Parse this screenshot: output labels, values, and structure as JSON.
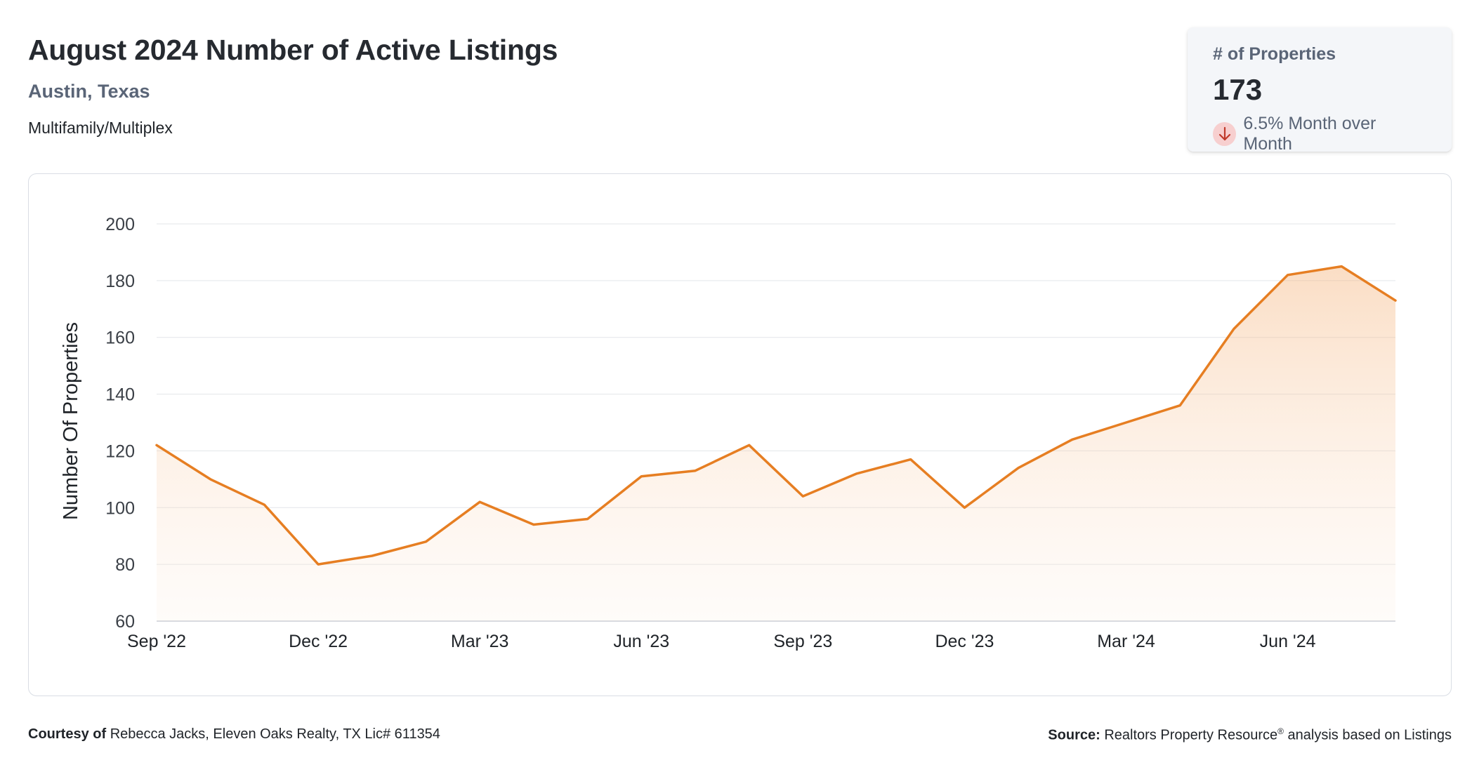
{
  "header": {
    "title": "August 2024 Number of Active Listings",
    "location": "Austin, Texas",
    "category": "Multifamily/Multiplex"
  },
  "stat_card": {
    "label": "# of Properties",
    "value": "173",
    "change_text": "6.5% Month over Month",
    "direction": "down",
    "direction_icon": "arrow-down-icon",
    "badge_color": "#f7cfcf",
    "arrow_color": "#c0392b"
  },
  "chart_data": {
    "type": "area",
    "title": "",
    "xlabel": "",
    "ylabel": "Number Of Properties",
    "ylim": [
      60,
      200
    ],
    "yticks": [
      60,
      80,
      100,
      120,
      140,
      160,
      180,
      200
    ],
    "grid": true,
    "line_color": "#e67e22",
    "x_tick_labels": [
      "Sep '22",
      "Dec '22",
      "Mar '23",
      "Jun '23",
      "Sep '23",
      "Dec '23",
      "Mar '24",
      "Jun '24"
    ],
    "x_tick_every": 3,
    "x": [
      "Sep '22",
      "Oct '22",
      "Nov '22",
      "Dec '22",
      "Jan '23",
      "Feb '23",
      "Mar '23",
      "Apr '23",
      "May '23",
      "Jun '23",
      "Jul '23",
      "Aug '23",
      "Sep '23",
      "Oct '23",
      "Nov '23",
      "Dec '23",
      "Jan '24",
      "Feb '24",
      "Mar '24",
      "Apr '24",
      "May '24",
      "Jun '24",
      "Jul '24",
      "Aug '24"
    ],
    "series": [
      {
        "values": [
          122,
          110,
          101,
          80,
          83,
          88,
          102,
          94,
          96,
          111,
          113,
          122,
          104,
          112,
          117,
          100,
          114,
          124,
          130,
          136,
          163,
          182,
          185,
          173
        ]
      }
    ]
  },
  "footer": {
    "courtesy_label": "Courtesy of",
    "courtesy_text": "Rebecca Jacks, Eleven Oaks Realty, TX Lic# 611354",
    "source_label": "Source:",
    "source_text": "Realtors Property Resource",
    "source_sup": "®",
    "source_suffix": "analysis based on Listings"
  }
}
